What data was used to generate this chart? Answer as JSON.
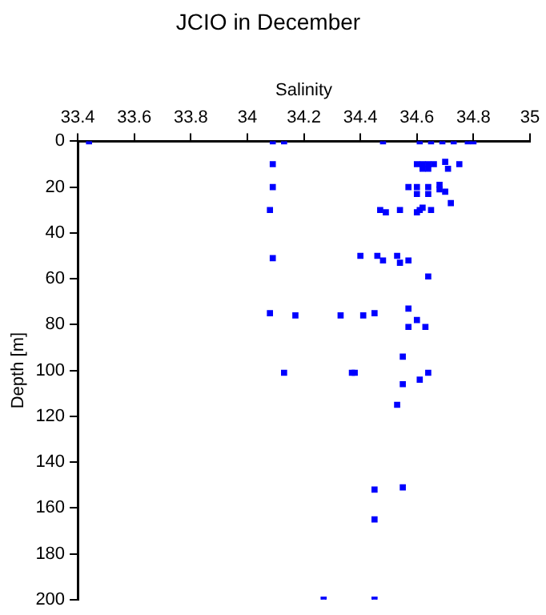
{
  "chart_data": {
    "type": "scatter",
    "title": "JCIO in December",
    "xlabel": "Salinity",
    "ylabel": "Depth [m]",
    "xlim": [
      33.4,
      35
    ],
    "xticks": [
      33.4,
      33.6,
      33.8,
      34,
      34.2,
      34.4,
      34.6,
      34.8,
      35
    ],
    "ylim": [
      200,
      0
    ],
    "yticks": [
      0,
      20,
      40,
      60,
      80,
      100,
      120,
      140,
      160,
      180,
      200
    ],
    "grid": false,
    "legend": false,
    "marker": "square",
    "series": [
      {
        "color": "#0000ff",
        "x": [
          33.44,
          34.09,
          34.13,
          34.48,
          34.61,
          34.65,
          34.69,
          34.73,
          34.78,
          34.8,
          34.09,
          34.6,
          34.62,
          34.64,
          34.66,
          34.7,
          34.75,
          34.62,
          34.64,
          34.71,
          34.09,
          34.57,
          34.6,
          34.6,
          34.64,
          34.64,
          34.68,
          34.68,
          34.7,
          34.08,
          34.47,
          34.49,
          34.54,
          34.6,
          34.61,
          34.62,
          34.65,
          34.72,
          34.09,
          34.4,
          34.46,
          34.48,
          34.53,
          34.54,
          34.57,
          34.64,
          34.08,
          34.17,
          34.33,
          34.41,
          34.45,
          34.57,
          34.6,
          34.57,
          34.63,
          34.55,
          34.13,
          34.37,
          34.38,
          34.64,
          34.55,
          34.61,
          34.53,
          34.45,
          34.55,
          34.45,
          34.27,
          34.45
        ],
        "values": [
          0,
          0,
          0,
          0,
          0,
          0,
          0,
          0,
          0,
          0,
          10,
          10,
          10,
          10,
          10,
          9,
          10,
          12,
          12,
          12,
          20,
          20,
          20,
          23,
          20,
          23,
          19,
          21,
          22,
          30,
          30,
          31,
          30,
          31,
          30,
          29,
          30,
          27,
          51,
          50,
          50,
          52,
          50,
          53,
          52,
          59,
          75,
          76,
          76,
          76,
          75,
          73,
          78,
          81,
          81,
          94,
          101,
          101,
          101,
          101,
          106,
          104,
          115,
          152,
          151,
          165,
          200,
          200
        ]
      }
    ]
  }
}
